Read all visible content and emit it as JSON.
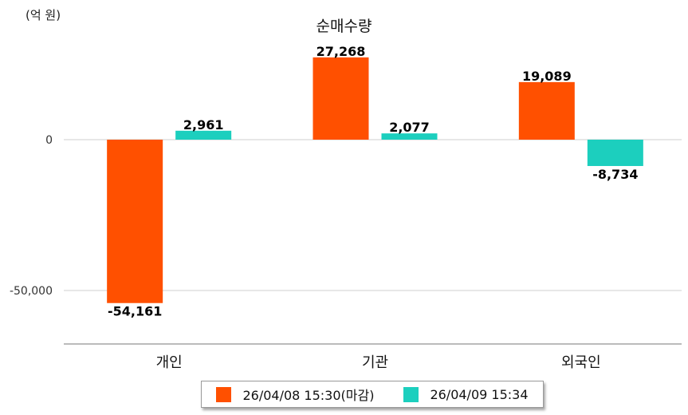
{
  "unit_label": "(억 원)",
  "chart_data": {
    "type": "bar",
    "title": "순매수량",
    "categories": [
      "개인",
      "기관",
      "외국인"
    ],
    "series": [
      {
        "name": "26/04/08 15:30(마감)",
        "values": [
          -54161,
          27268,
          19089
        ],
        "labels": [
          "-54,161",
          "27,268",
          "19,089"
        ],
        "color": "#ff5000"
      },
      {
        "name": "26/04/09 15:34",
        "values": [
          2961,
          2077,
          -8734
        ],
        "labels": [
          "2,961",
          "2,077",
          "-8,734"
        ],
        "color": "#1ccfbe"
      }
    ],
    "yticks": [
      0,
      -50000
    ],
    "ytick_labels": [
      "0",
      "-50,000"
    ],
    "ylim": [
      -68000,
      40000
    ],
    "grid": true,
    "legend_position": "bottom"
  }
}
